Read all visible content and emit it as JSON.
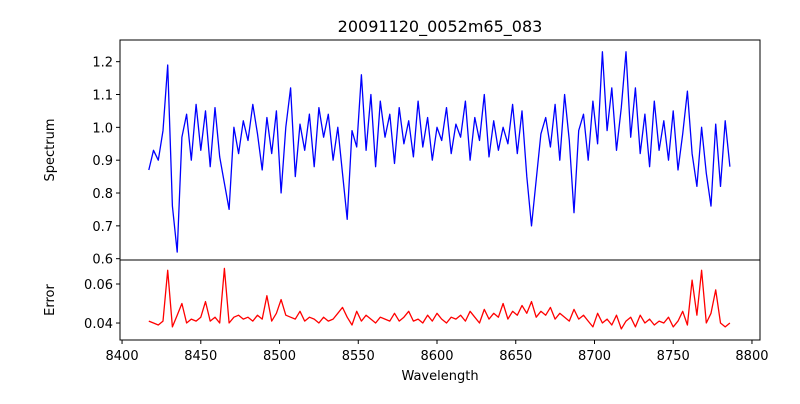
{
  "chart_data": [
    {
      "type": "line",
      "panel": "top",
      "title": "20091120_0052m65_083",
      "xlabel": "",
      "ylabel": "Spectrum",
      "xlim": [
        8398.7,
        8805.1
      ],
      "ylim": [
        0.596,
        1.266
      ],
      "yticks": [
        0.6,
        0.7,
        0.8,
        0.9,
        1.0,
        1.1,
        1.2
      ],
      "ytick_labels": [
        "0.6",
        "0.7",
        "0.8",
        "0.9",
        "1.0",
        "1.1",
        "1.2"
      ],
      "color": "#0000ff",
      "x_start": 8417,
      "x_step": 3,
      "values": [
        0.87,
        0.93,
        0.9,
        0.99,
        1.19,
        0.76,
        0.62,
        0.97,
        1.04,
        0.9,
        1.07,
        0.93,
        1.05,
        0.88,
        1.06,
        0.91,
        0.83,
        0.75,
        1.0,
        0.92,
        1.02,
        0.96,
        1.07,
        0.98,
        0.87,
        1.03,
        0.92,
        1.05,
        0.8,
        1.0,
        1.12,
        0.85,
        1.01,
        0.93,
        1.04,
        0.88,
        1.06,
        0.97,
        1.04,
        0.9,
        1.0,
        0.86,
        0.72,
        0.99,
        0.94,
        1.16,
        0.93,
        1.1,
        0.88,
        1.08,
        0.97,
        1.04,
        0.89,
        1.06,
        0.95,
        1.02,
        0.91,
        1.08,
        0.94,
        1.03,
        0.9,
        1.0,
        0.96,
        1.06,
        0.92,
        1.01,
        0.97,
        1.08,
        0.9,
        1.03,
        0.96,
        1.1,
        0.91,
        1.02,
        0.93,
        1.0,
        0.95,
        1.07,
        0.92,
        1.05,
        0.85,
        0.7,
        0.84,
        0.98,
        1.03,
        0.94,
        1.07,
        0.9,
        1.1,
        0.96,
        0.74,
        0.99,
        1.04,
        0.9,
        1.08,
        0.95,
        1.23,
        0.99,
        1.12,
        0.93,
        1.06,
        1.23,
        0.97,
        1.12,
        0.92,
        1.04,
        0.88,
        1.08,
        0.93,
        1.02,
        0.9,
        1.05,
        0.87,
        0.98,
        1.11,
        0.92,
        0.82,
        1.0,
        0.86,
        0.76,
        1.01,
        0.82,
        1.02,
        0.88
      ]
    },
    {
      "type": "line",
      "panel": "bottom",
      "xlabel": "Wavelength",
      "ylabel": "Error",
      "xlim": [
        8398.7,
        8805.1
      ],
      "ylim": [
        0.0313,
        0.0723
      ],
      "xticks": [
        8400,
        8450,
        8500,
        8550,
        8600,
        8650,
        8700,
        8750,
        8800
      ],
      "xtick_labels": [
        "8400",
        "8450",
        "8500",
        "8550",
        "8600",
        "8650",
        "8700",
        "8750",
        "8800"
      ],
      "yticks": [
        0.04,
        0.06
      ],
      "ytick_labels": [
        "0.04",
        "0.06"
      ],
      "color": "#ff0000",
      "x_start": 8417,
      "x_step": 3,
      "values": [
        0.041,
        0.04,
        0.039,
        0.041,
        0.067,
        0.038,
        0.044,
        0.05,
        0.04,
        0.042,
        0.041,
        0.043,
        0.051,
        0.041,
        0.043,
        0.04,
        0.068,
        0.04,
        0.043,
        0.044,
        0.042,
        0.043,
        0.041,
        0.044,
        0.042,
        0.054,
        0.041,
        0.045,
        0.052,
        0.044,
        0.043,
        0.042,
        0.046,
        0.041,
        0.043,
        0.042,
        0.04,
        0.043,
        0.041,
        0.042,
        0.045,
        0.048,
        0.043,
        0.039,
        0.046,
        0.041,
        0.044,
        0.042,
        0.04,
        0.043,
        0.042,
        0.041,
        0.045,
        0.041,
        0.043,
        0.046,
        0.041,
        0.042,
        0.04,
        0.044,
        0.041,
        0.045,
        0.042,
        0.04,
        0.043,
        0.042,
        0.044,
        0.041,
        0.046,
        0.043,
        0.04,
        0.047,
        0.042,
        0.045,
        0.043,
        0.05,
        0.042,
        0.046,
        0.044,
        0.049,
        0.045,
        0.051,
        0.043,
        0.046,
        0.044,
        0.048,
        0.042,
        0.045,
        0.043,
        0.041,
        0.047,
        0.042,
        0.044,
        0.041,
        0.038,
        0.045,
        0.04,
        0.042,
        0.039,
        0.044,
        0.037,
        0.041,
        0.043,
        0.038,
        0.044,
        0.04,
        0.042,
        0.039,
        0.041,
        0.04,
        0.043,
        0.038,
        0.041,
        0.046,
        0.039,
        0.062,
        0.044,
        0.067,
        0.04,
        0.045,
        0.057,
        0.04,
        0.038,
        0.04
      ]
    }
  ]
}
